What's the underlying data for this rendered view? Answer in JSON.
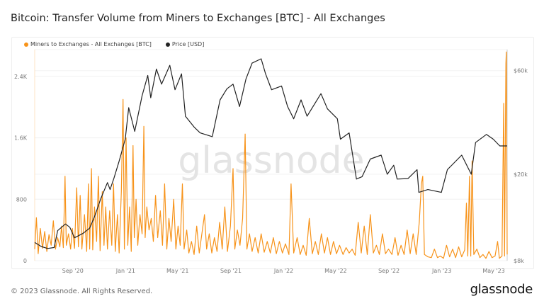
{
  "header": {
    "title": "Bitcoin: Transfer Volume from Miners to Exchanges [BTC] - All Exchanges"
  },
  "footer": {
    "copyright": "© 2023 Glassnode. All Rights Reserved.",
    "logo": "glassnode"
  },
  "watermark": "glassnode",
  "colors": {
    "volume": "#f7931a",
    "price": "#222222"
  },
  "chart_data": {
    "type": "line",
    "title": "Bitcoin: Transfer Volume from Miners to Exchanges [BTC] - All Exchanges",
    "legend_position": "top-left",
    "grid": true,
    "x_ticks": [
      "Sep '20",
      "Jan '21",
      "May '21",
      "Sep '21",
      "Jan '22",
      "May '22",
      "Sep '22",
      "Jan '23",
      "May '23"
    ],
    "x_tick_dates": [
      "2020-09-01",
      "2021-01-01",
      "2021-05-01",
      "2021-09-01",
      "2022-01-01",
      "2022-05-01",
      "2022-09-01",
      "2023-01-01",
      "2023-05-01"
    ],
    "xlim": [
      "2020-06-05",
      "2023-06-01"
    ],
    "y_left": {
      "ticks": [
        0,
        800,
        1600,
        2400
      ],
      "tick_labels": [
        "0",
        "800",
        "1.6K",
        "2.4K"
      ],
      "ylim": [
        0,
        2750
      ]
    },
    "y_right": {
      "scale": "log",
      "ticks": [
        8000,
        20000,
        60000
      ],
      "tick_labels": [
        "$8k",
        "$20k",
        "$60k"
      ],
      "ylim": [
        8000,
        75000
      ]
    },
    "series": [
      {
        "name": "Miners to Exchanges - All Exchanges [BTC]",
        "axis": "left",
        "color": "#f7931a",
        "points": [
          [
            "2020-06-05",
            150
          ],
          [
            "2020-06-09",
            560
          ],
          [
            "2020-06-13",
            90
          ],
          [
            "2020-06-18",
            420
          ],
          [
            "2020-06-23",
            160
          ],
          [
            "2020-06-28",
            380
          ],
          [
            "2020-07-03",
            120
          ],
          [
            "2020-07-08",
            340
          ],
          [
            "2020-07-13",
            200
          ],
          [
            "2020-07-18",
            520
          ],
          [
            "2020-07-23",
            150
          ],
          [
            "2020-07-28",
            300
          ],
          [
            "2020-08-02",
            180
          ],
          [
            "2020-08-06",
            450
          ],
          [
            "2020-08-10",
            170
          ],
          [
            "2020-08-14",
            1100
          ],
          [
            "2020-08-17",
            200
          ],
          [
            "2020-08-22",
            350
          ],
          [
            "2020-08-27",
            150
          ],
          [
            "2020-08-31",
            420
          ],
          [
            "2020-09-05",
            160
          ],
          [
            "2020-09-10",
            950
          ],
          [
            "2020-09-14",
            180
          ],
          [
            "2020-09-18",
            850
          ],
          [
            "2020-09-22",
            150
          ],
          [
            "2020-09-28",
            600
          ],
          [
            "2020-10-03",
            120
          ],
          [
            "2020-10-07",
            1000
          ],
          [
            "2020-10-10",
            150
          ],
          [
            "2020-10-14",
            1200
          ],
          [
            "2020-10-17",
            140
          ],
          [
            "2020-10-21",
            700
          ],
          [
            "2020-10-26",
            250
          ],
          [
            "2020-10-30",
            1100
          ],
          [
            "2020-11-03",
            130
          ],
          [
            "2020-11-08",
            900
          ],
          [
            "2020-11-12",
            200
          ],
          [
            "2020-11-16",
            700
          ],
          [
            "2020-11-20",
            150
          ],
          [
            "2020-11-25",
            650
          ],
          [
            "2020-11-30",
            200
          ],
          [
            "2020-12-04",
            1000
          ],
          [
            "2020-12-08",
            120
          ],
          [
            "2020-12-13",
            600
          ],
          [
            "2020-12-17",
            100
          ],
          [
            "2020-12-22",
            900
          ],
          [
            "2020-12-26",
            2100
          ],
          [
            "2020-12-29",
            150
          ],
          [
            "2021-01-02",
            1600
          ],
          [
            "2021-01-06",
            200
          ],
          [
            "2021-01-10",
            700
          ],
          [
            "2021-01-14",
            120
          ],
          [
            "2021-01-18",
            1500
          ],
          [
            "2021-01-21",
            300
          ],
          [
            "2021-01-25",
            800
          ],
          [
            "2021-01-29",
            200
          ],
          [
            "2021-02-03",
            600
          ],
          [
            "2021-02-08",
            350
          ],
          [
            "2021-02-12",
            1750
          ],
          [
            "2021-02-15",
            300
          ],
          [
            "2021-02-19",
            700
          ],
          [
            "2021-02-24",
            400
          ],
          [
            "2021-03-01",
            550
          ],
          [
            "2021-03-06",
            250
          ],
          [
            "2021-03-11",
            850
          ],
          [
            "2021-03-16",
            300
          ],
          [
            "2021-03-22",
            650
          ],
          [
            "2021-03-27",
            200
          ],
          [
            "2021-04-01",
            1000
          ],
          [
            "2021-04-06",
            150
          ],
          [
            "2021-04-11",
            550
          ],
          [
            "2021-04-16",
            250
          ],
          [
            "2021-04-22",
            800
          ],
          [
            "2021-04-27",
            150
          ],
          [
            "2021-05-02",
            450
          ],
          [
            "2021-05-07",
            200
          ],
          [
            "2021-05-12",
            1000
          ],
          [
            "2021-05-16",
            150
          ],
          [
            "2021-05-22",
            400
          ],
          [
            "2021-05-27",
            100
          ],
          [
            "2021-06-02",
            250
          ],
          [
            "2021-06-08",
            80
          ],
          [
            "2021-06-14",
            450
          ],
          [
            "2021-06-20",
            100
          ],
          [
            "2021-06-26",
            350
          ],
          [
            "2021-07-02",
            600
          ],
          [
            "2021-07-07",
            150
          ],
          [
            "2021-07-13",
            350
          ],
          [
            "2021-07-19",
            100
          ],
          [
            "2021-07-25",
            300
          ],
          [
            "2021-07-31",
            120
          ],
          [
            "2021-08-06",
            500
          ],
          [
            "2021-08-12",
            150
          ],
          [
            "2021-08-18",
            700
          ],
          [
            "2021-08-24",
            120
          ],
          [
            "2021-08-31",
            450
          ],
          [
            "2021-09-06",
            1200
          ],
          [
            "2021-09-10",
            150
          ],
          [
            "2021-09-16",
            400
          ],
          [
            "2021-09-22",
            200
          ],
          [
            "2021-09-28",
            550
          ],
          [
            "2021-10-04",
            1650
          ],
          [
            "2021-10-08",
            150
          ],
          [
            "2021-10-14",
            350
          ],
          [
            "2021-10-20",
            120
          ],
          [
            "2021-10-27",
            300
          ],
          [
            "2021-11-03",
            100
          ],
          [
            "2021-11-10",
            350
          ],
          [
            "2021-11-17",
            110
          ],
          [
            "2021-11-24",
            250
          ],
          [
            "2021-12-01",
            100
          ],
          [
            "2021-12-08",
            300
          ],
          [
            "2021-12-15",
            90
          ],
          [
            "2021-12-22",
            250
          ],
          [
            "2021-12-29",
            100
          ],
          [
            "2022-01-05",
            220
          ],
          [
            "2022-01-13",
            80
          ],
          [
            "2022-01-18",
            1000
          ],
          [
            "2022-01-24",
            100
          ],
          [
            "2022-02-01",
            300
          ],
          [
            "2022-02-08",
            80
          ],
          [
            "2022-02-15",
            200
          ],
          [
            "2022-02-22",
            70
          ],
          [
            "2022-03-01",
            550
          ],
          [
            "2022-03-08",
            90
          ],
          [
            "2022-03-15",
            250
          ],
          [
            "2022-03-22",
            80
          ],
          [
            "2022-03-29",
            350
          ],
          [
            "2022-04-05",
            100
          ],
          [
            "2022-04-12",
            300
          ],
          [
            "2022-04-19",
            80
          ],
          [
            "2022-04-26",
            250
          ],
          [
            "2022-05-03",
            90
          ],
          [
            "2022-05-10",
            200
          ],
          [
            "2022-05-18",
            80
          ],
          [
            "2022-05-25",
            170
          ],
          [
            "2022-06-01",
            100
          ],
          [
            "2022-06-08",
            150
          ],
          [
            "2022-06-15",
            70
          ],
          [
            "2022-06-22",
            500
          ],
          [
            "2022-06-29",
            100
          ],
          [
            "2022-07-06",
            450
          ],
          [
            "2022-07-13",
            80
          ],
          [
            "2022-07-20",
            600
          ],
          [
            "2022-07-27",
            100
          ],
          [
            "2022-08-03",
            200
          ],
          [
            "2022-08-10",
            80
          ],
          [
            "2022-08-17",
            350
          ],
          [
            "2022-08-24",
            90
          ],
          [
            "2022-08-31",
            150
          ],
          [
            "2022-09-08",
            80
          ],
          [
            "2022-09-15",
            300
          ],
          [
            "2022-09-22",
            70
          ],
          [
            "2022-09-29",
            200
          ],
          [
            "2022-10-06",
            80
          ],
          [
            "2022-10-13",
            400
          ],
          [
            "2022-10-20",
            90
          ],
          [
            "2022-10-27",
            350
          ],
          [
            "2022-11-03",
            80
          ],
          [
            "2022-11-10",
            500
          ],
          [
            "2022-11-15",
            1000
          ],
          [
            "2022-11-18",
            1100
          ],
          [
            "2022-11-22",
            80
          ],
          [
            "2022-11-30",
            50
          ],
          [
            "2022-12-08",
            40
          ],
          [
            "2022-12-15",
            150
          ],
          [
            "2022-12-22",
            40
          ],
          [
            "2022-12-29",
            60
          ],
          [
            "2023-01-05",
            30
          ],
          [
            "2023-01-12",
            200
          ],
          [
            "2023-01-19",
            50
          ],
          [
            "2023-01-26",
            150
          ],
          [
            "2023-02-02",
            40
          ],
          [
            "2023-02-09",
            180
          ],
          [
            "2023-02-16",
            50
          ],
          [
            "2023-02-23",
            140
          ],
          [
            "2023-02-27",
            750
          ],
          [
            "2023-03-02",
            60
          ],
          [
            "2023-03-06",
            1100
          ],
          [
            "2023-03-09",
            60
          ],
          [
            "2023-03-12",
            1300
          ],
          [
            "2023-03-16",
            80
          ],
          [
            "2023-03-23",
            150
          ],
          [
            "2023-03-30",
            40
          ],
          [
            "2023-04-06",
            80
          ],
          [
            "2023-04-13",
            30
          ],
          [
            "2023-04-20",
            120
          ],
          [
            "2023-04-27",
            40
          ],
          [
            "2023-05-04",
            60
          ],
          [
            "2023-05-10",
            250
          ],
          [
            "2023-05-14",
            30
          ],
          [
            "2023-05-20",
            60
          ],
          [
            "2023-05-24",
            2050
          ],
          [
            "2023-05-26",
            60
          ],
          [
            "2023-05-29",
            2570
          ],
          [
            "2023-05-30",
            2720
          ],
          [
            "2023-06-01",
            80
          ]
        ]
      },
      {
        "name": "Price [USD]",
        "axis": "right",
        "color": "#222222",
        "points": [
          [
            "2020-06-05",
            9700
          ],
          [
            "2020-06-20",
            9300
          ],
          [
            "2020-07-05",
            9100
          ],
          [
            "2020-07-20",
            9200
          ],
          [
            "2020-07-28",
            11000
          ],
          [
            "2020-08-15",
            11800
          ],
          [
            "2020-08-25",
            11400
          ],
          [
            "2020-09-05",
            10200
          ],
          [
            "2020-09-25",
            10700
          ],
          [
            "2020-10-10",
            11300
          ],
          [
            "2020-10-22",
            12900
          ],
          [
            "2020-11-05",
            15500
          ],
          [
            "2020-11-20",
            18300
          ],
          [
            "2020-11-26",
            17000
          ],
          [
            "2020-12-05",
            19200
          ],
          [
            "2020-12-17",
            23000
          ],
          [
            "2020-12-31",
            29000
          ],
          [
            "2021-01-08",
            40500
          ],
          [
            "2021-01-22",
            31500
          ],
          [
            "2021-02-08",
            46000
          ],
          [
            "2021-02-21",
            57000
          ],
          [
            "2021-02-28",
            45000
          ],
          [
            "2021-03-13",
            61000
          ],
          [
            "2021-03-25",
            52000
          ],
          [
            "2021-04-13",
            63500
          ],
          [
            "2021-04-25",
            49000
          ],
          [
            "2021-05-10",
            58000
          ],
          [
            "2021-05-19",
            37000
          ],
          [
            "2021-06-08",
            33000
          ],
          [
            "2021-06-22",
            31000
          ],
          [
            "2021-07-20",
            29800
          ],
          [
            "2021-08-07",
            44000
          ],
          [
            "2021-08-23",
            49500
          ],
          [
            "2021-09-06",
            52000
          ],
          [
            "2021-09-21",
            41000
          ],
          [
            "2021-10-06",
            55000
          ],
          [
            "2021-10-20",
            65000
          ],
          [
            "2021-11-10",
            68000
          ],
          [
            "2021-11-20",
            58000
          ],
          [
            "2021-12-04",
            49000
          ],
          [
            "2021-12-27",
            51000
          ],
          [
            "2022-01-10",
            41000
          ],
          [
            "2022-01-24",
            36000
          ],
          [
            "2022-02-10",
            44000
          ],
          [
            "2022-02-24",
            37000
          ],
          [
            "2022-03-28",
            47000
          ],
          [
            "2022-04-12",
            40000
          ],
          [
            "2022-05-05",
            36000
          ],
          [
            "2022-05-12",
            29000
          ],
          [
            "2022-06-01",
            31000
          ],
          [
            "2022-06-18",
            19000
          ],
          [
            "2022-07-01",
            19500
          ],
          [
            "2022-07-20",
            23500
          ],
          [
            "2022-08-14",
            24500
          ],
          [
            "2022-08-28",
            20000
          ],
          [
            "2022-09-12",
            22000
          ],
          [
            "2022-09-20",
            19000
          ],
          [
            "2022-10-15",
            19100
          ],
          [
            "2022-11-05",
            21000
          ],
          [
            "2022-11-09",
            16500
          ],
          [
            "2022-11-30",
            17000
          ],
          [
            "2022-12-31",
            16500
          ],
          [
            "2023-01-14",
            21000
          ],
          [
            "2023-02-16",
            24500
          ],
          [
            "2023-03-10",
            20000
          ],
          [
            "2023-03-20",
            28000
          ],
          [
            "2023-04-14",
            30500
          ],
          [
            "2023-04-30",
            29000
          ],
          [
            "2023-05-15",
            27000
          ],
          [
            "2023-06-01",
            27000
          ]
        ]
      }
    ]
  }
}
